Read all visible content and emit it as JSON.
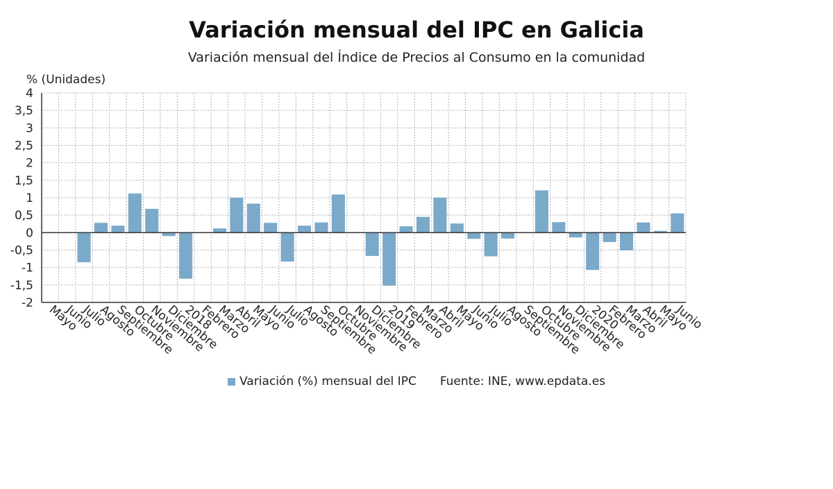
{
  "title": "Variación mensual del IPC en Galicia",
  "subtitle": "Variación mensual del Índice de Precios al Consumo en la comunidad",
  "legend": {
    "label": "Variación (%) mensual del IPC"
  },
  "source": "Fuente: INE, www.epdata.es",
  "colors": {
    "bar": "#7aa9c9",
    "grid": "#b0b0b0",
    "axis": "#333333"
  },
  "chart_data": {
    "type": "bar",
    "ylabel": "% (Unidades)",
    "xlabel": "",
    "ylim": [
      -2,
      4
    ],
    "yticks": [
      "-2",
      "-1,5",
      "-1",
      "-0,5",
      "0",
      "0,5",
      "1",
      "1,5",
      "2",
      "2,5",
      "3",
      "3,5",
      "4"
    ],
    "grid": true,
    "legend_position": "bottom",
    "categories": [
      "Mayo",
      "Junio",
      "Julio",
      "Agosto",
      "Septiembre",
      "Octubre",
      "Noviembre",
      "Diciembre",
      "2018",
      "Febrero",
      "Marzo",
      "Abril",
      "Mayo",
      "Junio",
      "Julio",
      "Agosto",
      "Septiembre",
      "Octubre",
      "Noviembre",
      "Diciembre",
      "2019",
      "Febrero",
      "Marzo",
      "Abril",
      "Mayo",
      "Junio",
      "Julio",
      "Agosto",
      "Septiembre",
      "Octubre",
      "Noviembre",
      "Diciembre",
      "2020",
      "Febrero",
      "Marzo",
      "Abril",
      "Mayo",
      "Junio"
    ],
    "series": [
      {
        "name": "Variación (%) mensual del IPC",
        "values": [
          0,
          0,
          -0.85,
          0.28,
          0.2,
          1.12,
          0.68,
          -0.1,
          -1.32,
          0,
          0.12,
          1.0,
          0.83,
          0.28,
          -0.83,
          0.2,
          0.29,
          1.09,
          0,
          -0.67,
          -1.52,
          0.18,
          0.45,
          1.0,
          0.26,
          -0.18,
          -0.68,
          -0.17,
          0,
          1.21,
          0.3,
          -0.14,
          -1.07,
          -0.27,
          -0.51,
          0.29,
          0.05,
          0.55
        ]
      }
    ]
  }
}
